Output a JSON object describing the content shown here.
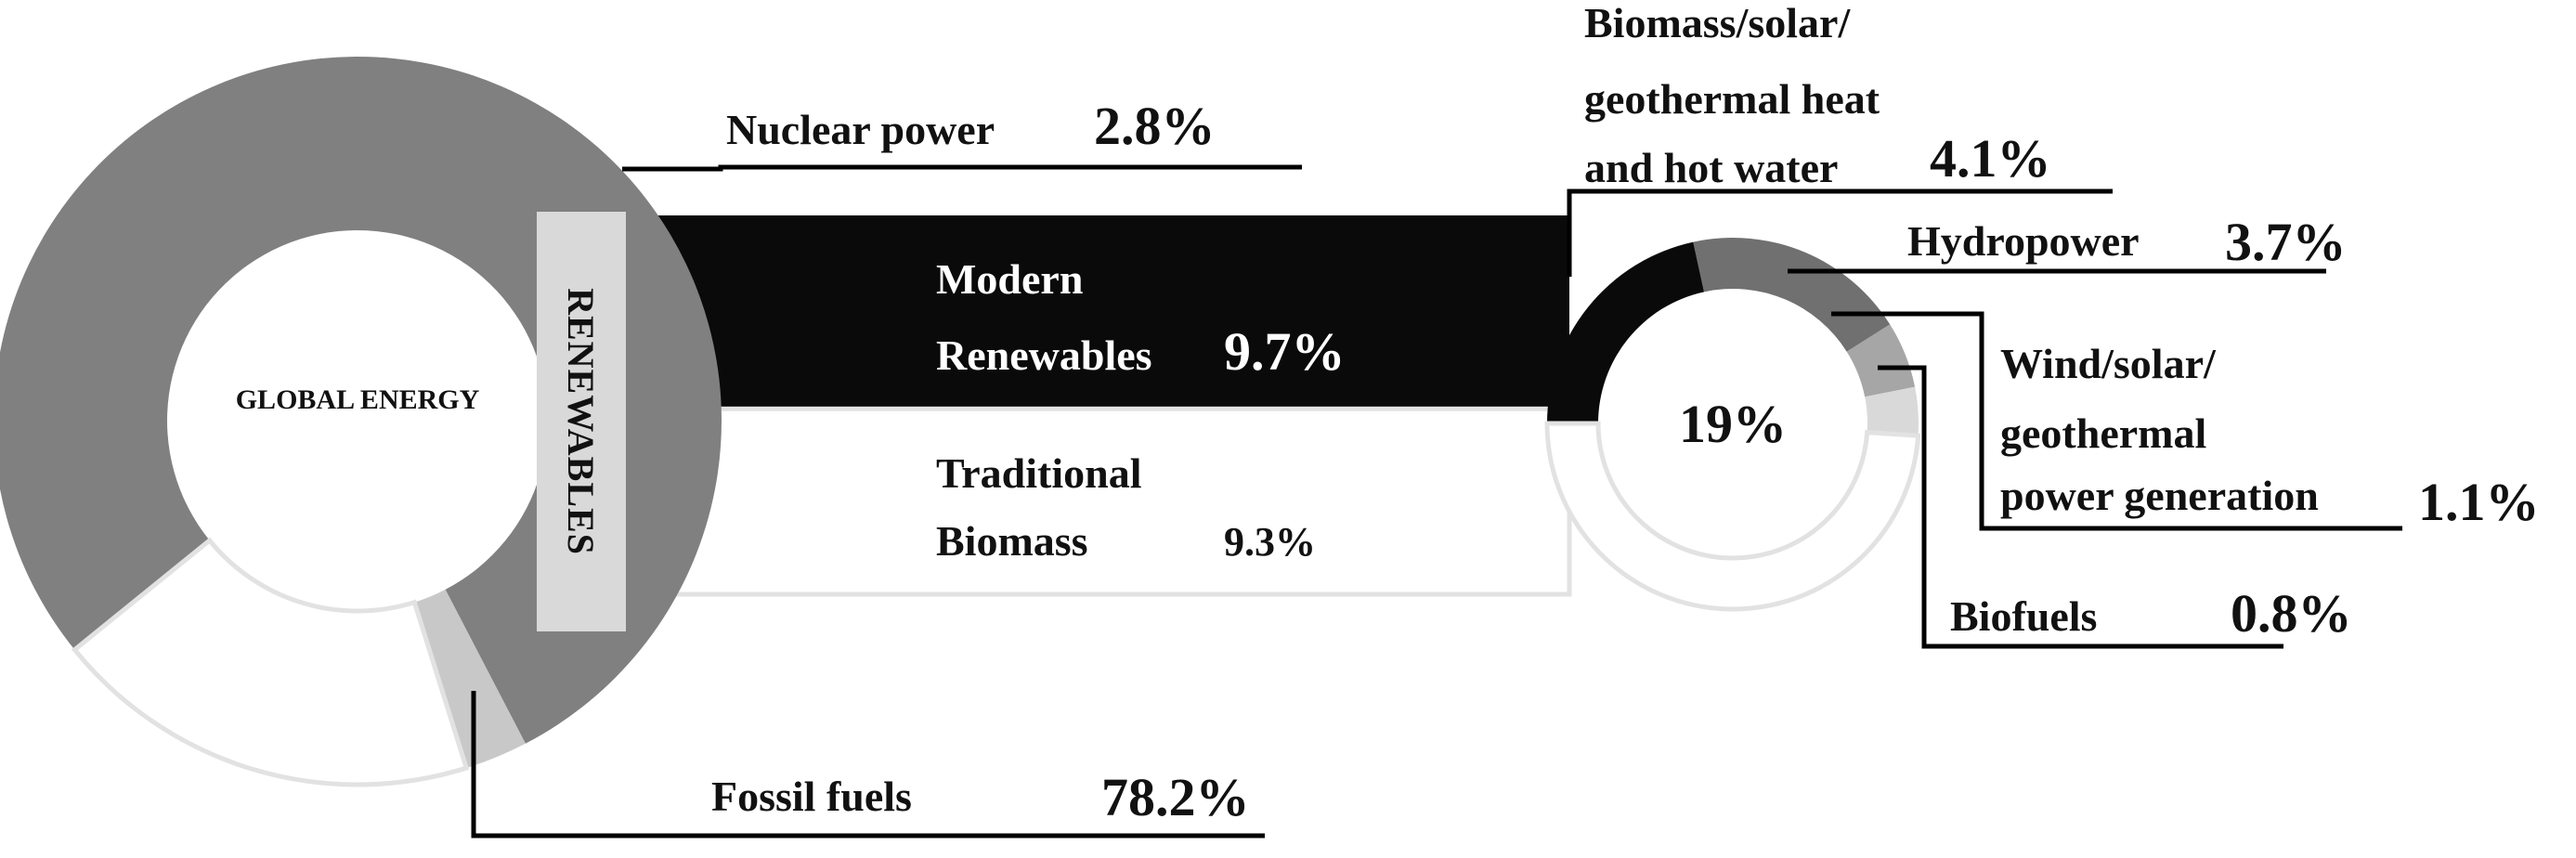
{
  "chart_data": [
    {
      "type": "donut",
      "center_label": "GLOBAL ENERGY",
      "renewables_label": "RENEWABLES",
      "slices": [
        {
          "name": "Fossil fuels",
          "value": 78.2,
          "value_label": "78.2%",
          "color": "#808080"
        },
        {
          "name": "Nuclear power",
          "value": 2.8,
          "value_label": "2.8%",
          "color": "#c8c8c8"
        },
        {
          "name": "Renewables",
          "value": 19.0,
          "value_label": "19%",
          "color": "#ffffff"
        }
      ]
    },
    {
      "type": "bar",
      "stacked": true,
      "segments": [
        {
          "name_lines": [
            "Modern",
            "Renewables"
          ],
          "value": 9.7,
          "value_label": "9.7%",
          "color": "#0a0a0a"
        },
        {
          "name_lines": [
            "Traditional",
            "Biomass"
          ],
          "value": 9.3,
          "value_label": "9.3%",
          "color": "#ffffff"
        }
      ]
    },
    {
      "type": "donut",
      "center_label": "19%",
      "slices": [
        {
          "name_lines": [
            "Biomass/solar/",
            "geothermal heat",
            "and hot water"
          ],
          "value": 4.1,
          "value_label": "4.1%",
          "color": "#0a0a0a"
        },
        {
          "name_lines": [
            "Hydropower"
          ],
          "value": 3.7,
          "value_label": "3.7%",
          "color": "#707070"
        },
        {
          "name_lines": [
            "Wind/solar/",
            "geothermal",
            "power generation"
          ],
          "value": 1.1,
          "value_label": "1.1%",
          "color": "#a6a6a6"
        },
        {
          "name_lines": [
            "Biofuels"
          ],
          "value": 0.8,
          "value_label": "0.8%",
          "color": "#d9d9d9"
        },
        {
          "name_lines": [
            "Traditional Biomass"
          ],
          "value": 9.3,
          "value_label": "9.3%",
          "color": "#ffffff"
        }
      ]
    }
  ],
  "colors": {
    "line": "#000000",
    "outline": "#e2e2e2"
  }
}
